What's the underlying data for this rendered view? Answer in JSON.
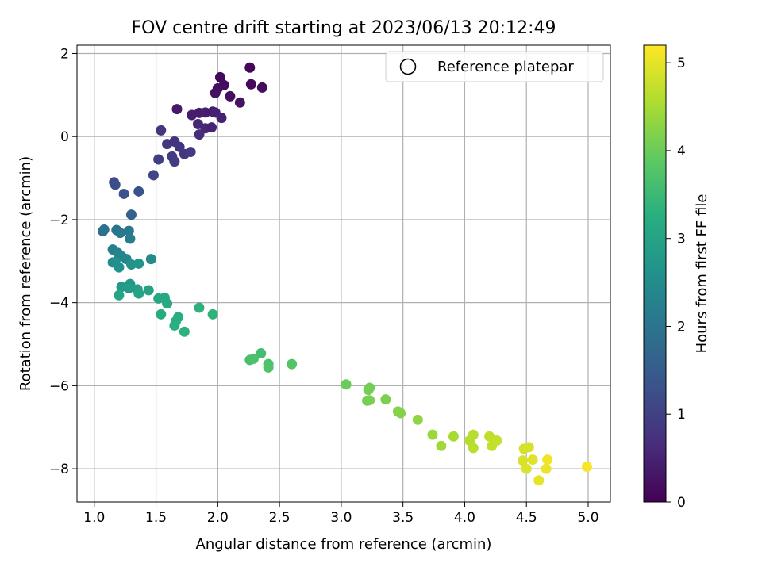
{
  "chart_data": {
    "type": "scatter",
    "title": "FOV centre drift starting at 2023/06/13 20:12:49",
    "xlabel": "Angular distance from reference (arcmin)",
    "ylabel": "Rotation from reference (arcmin)",
    "xlim": [
      0.86,
      5.18
    ],
    "ylim": [
      -8.8,
      2.2
    ],
    "xticks": [
      {
        "v": 1.0,
        "label": "1.0"
      },
      {
        "v": 1.5,
        "label": "1.5"
      },
      {
        "v": 2.0,
        "label": "2.0"
      },
      {
        "v": 2.5,
        "label": "2.5"
      },
      {
        "v": 3.0,
        "label": "3.0"
      },
      {
        "v": 3.5,
        "label": "3.5"
      },
      {
        "v": 4.0,
        "label": "4.0"
      },
      {
        "v": 4.5,
        "label": "4.5"
      },
      {
        "v": 5.0,
        "label": "5.0"
      }
    ],
    "yticks": [
      {
        "v": 2,
        "label": "2"
      },
      {
        "v": 0,
        "label": "0"
      },
      {
        "v": -2,
        "label": "−2"
      },
      {
        "v": -4,
        "label": "−4"
      },
      {
        "v": -6,
        "label": "−6"
      },
      {
        "v": -8,
        "label": "−8"
      }
    ],
    "grid": true,
    "legend": {
      "placement": "top-right",
      "label": "Reference platepar",
      "marker": "open-circle"
    },
    "colorbar": {
      "label": "Hours from first FF file",
      "colormap": "viridis",
      "range": [
        0,
        5.2
      ],
      "ticks": [
        {
          "v": 0,
          "label": "0"
        },
        {
          "v": 1,
          "label": "1"
        },
        {
          "v": 2,
          "label": "2"
        },
        {
          "v": 3,
          "label": "3"
        },
        {
          "v": 4,
          "label": "4"
        },
        {
          "v": 5,
          "label": "5"
        }
      ]
    },
    "points": [
      {
        "x": 2.26,
        "y": 1.66,
        "t": 0.05
      },
      {
        "x": 2.02,
        "y": 1.43,
        "t": 0.1
      },
      {
        "x": 2.05,
        "y": 1.24,
        "t": 0.15
      },
      {
        "x": 2.27,
        "y": 1.26,
        "t": 0.12
      },
      {
        "x": 2.36,
        "y": 1.18,
        "t": 0.18
      },
      {
        "x": 2.0,
        "y": 1.16,
        "t": 0.2
      },
      {
        "x": 1.98,
        "y": 1.05,
        "t": 0.25
      },
      {
        "x": 2.1,
        "y": 0.97,
        "t": 0.22
      },
      {
        "x": 2.18,
        "y": 0.82,
        "t": 0.28
      },
      {
        "x": 1.67,
        "y": 0.66,
        "t": 0.35
      },
      {
        "x": 1.79,
        "y": 0.52,
        "t": 0.4
      },
      {
        "x": 1.85,
        "y": 0.57,
        "t": 0.42
      },
      {
        "x": 1.9,
        "y": 0.58,
        "t": 0.45
      },
      {
        "x": 1.96,
        "y": 0.6,
        "t": 0.38
      },
      {
        "x": 1.98,
        "y": 0.58,
        "t": 0.48
      },
      {
        "x": 2.03,
        "y": 0.45,
        "t": 0.5
      },
      {
        "x": 1.84,
        "y": 0.3,
        "t": 0.55
      },
      {
        "x": 1.9,
        "y": 0.2,
        "t": 0.58
      },
      {
        "x": 1.95,
        "y": 0.22,
        "t": 0.52
      },
      {
        "x": 1.85,
        "y": 0.05,
        "t": 0.65
      },
      {
        "x": 1.54,
        "y": 0.15,
        "t": 0.8
      },
      {
        "x": 1.59,
        "y": -0.18,
        "t": 0.85
      },
      {
        "x": 1.65,
        "y": -0.12,
        "t": 0.75
      },
      {
        "x": 1.69,
        "y": -0.25,
        "t": 0.78
      },
      {
        "x": 1.73,
        "y": -0.42,
        "t": 0.82
      },
      {
        "x": 1.78,
        "y": -0.37,
        "t": 0.88
      },
      {
        "x": 1.63,
        "y": -0.48,
        "t": 0.9
      },
      {
        "x": 1.65,
        "y": -0.6,
        "t": 0.92
      },
      {
        "x": 1.52,
        "y": -0.55,
        "t": 0.95
      },
      {
        "x": 1.48,
        "y": -0.93,
        "t": 1.05
      },
      {
        "x": 1.16,
        "y": -1.1,
        "t": 1.2
      },
      {
        "x": 1.17,
        "y": -1.16,
        "t": 1.25
      },
      {
        "x": 1.24,
        "y": -1.38,
        "t": 1.3
      },
      {
        "x": 1.36,
        "y": -1.32,
        "t": 1.35
      },
      {
        "x": 1.3,
        "y": -1.88,
        "t": 1.65
      },
      {
        "x": 1.07,
        "y": -2.28,
        "t": 1.9
      },
      {
        "x": 1.08,
        "y": -2.24,
        "t": 1.95
      },
      {
        "x": 1.18,
        "y": -2.25,
        "t": 2.0
      },
      {
        "x": 1.21,
        "y": -2.32,
        "t": 2.05
      },
      {
        "x": 1.28,
        "y": -2.27,
        "t": 2.1
      },
      {
        "x": 1.29,
        "y": -2.46,
        "t": 2.15
      },
      {
        "x": 1.15,
        "y": -2.72,
        "t": 2.2
      },
      {
        "x": 1.19,
        "y": -2.8,
        "t": 2.3
      },
      {
        "x": 1.22,
        "y": -2.88,
        "t": 2.35
      },
      {
        "x": 1.26,
        "y": -2.95,
        "t": 2.4
      },
      {
        "x": 1.46,
        "y": -2.95,
        "t": 2.45
      },
      {
        "x": 1.15,
        "y": -3.03,
        "t": 2.5
      },
      {
        "x": 1.17,
        "y": -3.02,
        "t": 2.55
      },
      {
        "x": 1.2,
        "y": -3.15,
        "t": 2.6
      },
      {
        "x": 1.3,
        "y": -3.08,
        "t": 2.65
      },
      {
        "x": 1.36,
        "y": -3.06,
        "t": 2.7
      },
      {
        "x": 1.29,
        "y": -3.55,
        "t": 2.75
      },
      {
        "x": 1.22,
        "y": -3.62,
        "t": 2.8
      },
      {
        "x": 1.28,
        "y": -3.65,
        "t": 2.85
      },
      {
        "x": 1.35,
        "y": -3.68,
        "t": 2.9
      },
      {
        "x": 1.44,
        "y": -3.7,
        "t": 2.95
      },
      {
        "x": 1.36,
        "y": -3.78,
        "t": 3.0
      },
      {
        "x": 1.2,
        "y": -3.82,
        "t": 3.05
      },
      {
        "x": 1.52,
        "y": -3.9,
        "t": 3.1
      },
      {
        "x": 1.57,
        "y": -3.88,
        "t": 3.12
      },
      {
        "x": 1.59,
        "y": -4.02,
        "t": 3.15
      },
      {
        "x": 1.54,
        "y": -4.28,
        "t": 3.2
      },
      {
        "x": 1.68,
        "y": -4.35,
        "t": 3.22
      },
      {
        "x": 1.66,
        "y": -4.45,
        "t": 3.25
      },
      {
        "x": 1.65,
        "y": -4.55,
        "t": 3.28
      },
      {
        "x": 1.73,
        "y": -4.7,
        "t": 3.3
      },
      {
        "x": 1.85,
        "y": -4.12,
        "t": 3.32
      },
      {
        "x": 1.96,
        "y": -4.28,
        "t": 3.35
      },
      {
        "x": 2.35,
        "y": -5.22,
        "t": 3.6
      },
      {
        "x": 2.26,
        "y": -5.38,
        "t": 3.65
      },
      {
        "x": 2.29,
        "y": -5.35,
        "t": 3.68
      },
      {
        "x": 2.41,
        "y": -5.48,
        "t": 3.7
      },
      {
        "x": 2.41,
        "y": -5.56,
        "t": 3.72
      },
      {
        "x": 2.6,
        "y": -5.48,
        "t": 3.75
      },
      {
        "x": 3.04,
        "y": -5.97,
        "t": 4.0
      },
      {
        "x": 3.23,
        "y": -6.05,
        "t": 4.05
      },
      {
        "x": 3.22,
        "y": -6.1,
        "t": 4.08
      },
      {
        "x": 3.21,
        "y": -6.36,
        "t": 4.1
      },
      {
        "x": 3.23,
        "y": -6.35,
        "t": 4.12
      },
      {
        "x": 3.36,
        "y": -6.33,
        "t": 4.15
      },
      {
        "x": 3.46,
        "y": -6.62,
        "t": 4.2
      },
      {
        "x": 3.48,
        "y": -6.66,
        "t": 4.22
      },
      {
        "x": 3.62,
        "y": -6.82,
        "t": 4.3
      },
      {
        "x": 3.74,
        "y": -7.18,
        "t": 4.4
      },
      {
        "x": 3.81,
        "y": -7.45,
        "t": 4.45
      },
      {
        "x": 3.91,
        "y": -7.22,
        "t": 4.5
      },
      {
        "x": 4.04,
        "y": -7.32,
        "t": 4.6
      },
      {
        "x": 4.07,
        "y": -7.18,
        "t": 4.62
      },
      {
        "x": 4.07,
        "y": -7.5,
        "t": 4.65
      },
      {
        "x": 4.2,
        "y": -7.22,
        "t": 4.7
      },
      {
        "x": 4.22,
        "y": -7.45,
        "t": 4.72
      },
      {
        "x": 4.26,
        "y": -7.32,
        "t": 4.75
      },
      {
        "x": 4.48,
        "y": -7.52,
        "t": 4.85
      },
      {
        "x": 4.52,
        "y": -7.48,
        "t": 4.88
      },
      {
        "x": 4.47,
        "y": -7.8,
        "t": 4.9
      },
      {
        "x": 4.5,
        "y": -8.0,
        "t": 4.92
      },
      {
        "x": 4.55,
        "y": -7.78,
        "t": 4.95
      },
      {
        "x": 4.6,
        "y": -8.28,
        "t": 5.0
      },
      {
        "x": 4.66,
        "y": -8.0,
        "t": 5.05
      },
      {
        "x": 4.67,
        "y": -7.78,
        "t": 5.08
      },
      {
        "x": 4.99,
        "y": -7.95,
        "t": 5.15
      }
    ]
  }
}
